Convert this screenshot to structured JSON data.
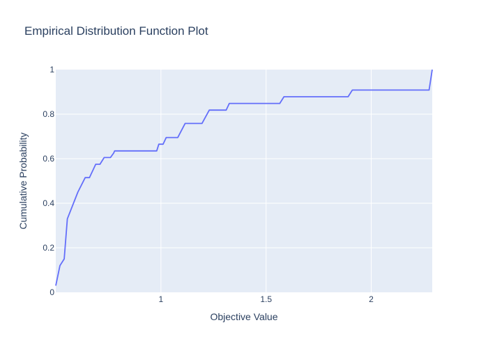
{
  "chart_data": {
    "type": "line",
    "title": "Empirical Distribution Function Plot",
    "xlabel": "Objective Value",
    "ylabel": "Cumulative Probability",
    "xlim": [
      0.5,
      2.29
    ],
    "ylim": [
      0,
      1
    ],
    "x_ticks": [
      {
        "value": 1,
        "label": "1"
      },
      {
        "value": 1.5,
        "label": "1.5"
      },
      {
        "value": 2,
        "label": "2"
      }
    ],
    "y_ticks": [
      {
        "value": 0,
        "label": "0"
      },
      {
        "value": 0.2,
        "label": "0.2"
      },
      {
        "value": 0.4,
        "label": "0.4"
      },
      {
        "value": 0.6,
        "label": "0.6"
      },
      {
        "value": 0.8,
        "label": "0.8"
      },
      {
        "value": 1,
        "label": "1"
      }
    ],
    "grid": true,
    "plot_background": "#e5ecf6",
    "line_color": "#636efa",
    "series": [
      {
        "x": [
          0.5,
          0.52,
          0.54,
          0.555,
          0.605,
          0.64,
          0.66,
          0.69,
          0.71,
          0.73,
          0.76,
          0.775,
          0.78,
          0.98,
          0.99,
          1.01,
          1.025,
          1.035,
          1.08,
          1.115,
          1.125,
          1.195,
          1.23,
          1.31,
          1.325,
          1.565,
          1.585,
          1.89,
          1.91,
          2.275,
          2.29
        ],
        "y": [
          0.03,
          0.12,
          0.15,
          0.33,
          0.45,
          0.515,
          0.515,
          0.575,
          0.575,
          0.605,
          0.605,
          0.625,
          0.635,
          0.635,
          0.665,
          0.665,
          0.695,
          0.695,
          0.695,
          0.758,
          0.758,
          0.758,
          0.818,
          0.818,
          0.848,
          0.848,
          0.878,
          0.878,
          0.908,
          0.908,
          1.0
        ]
      }
    ]
  }
}
